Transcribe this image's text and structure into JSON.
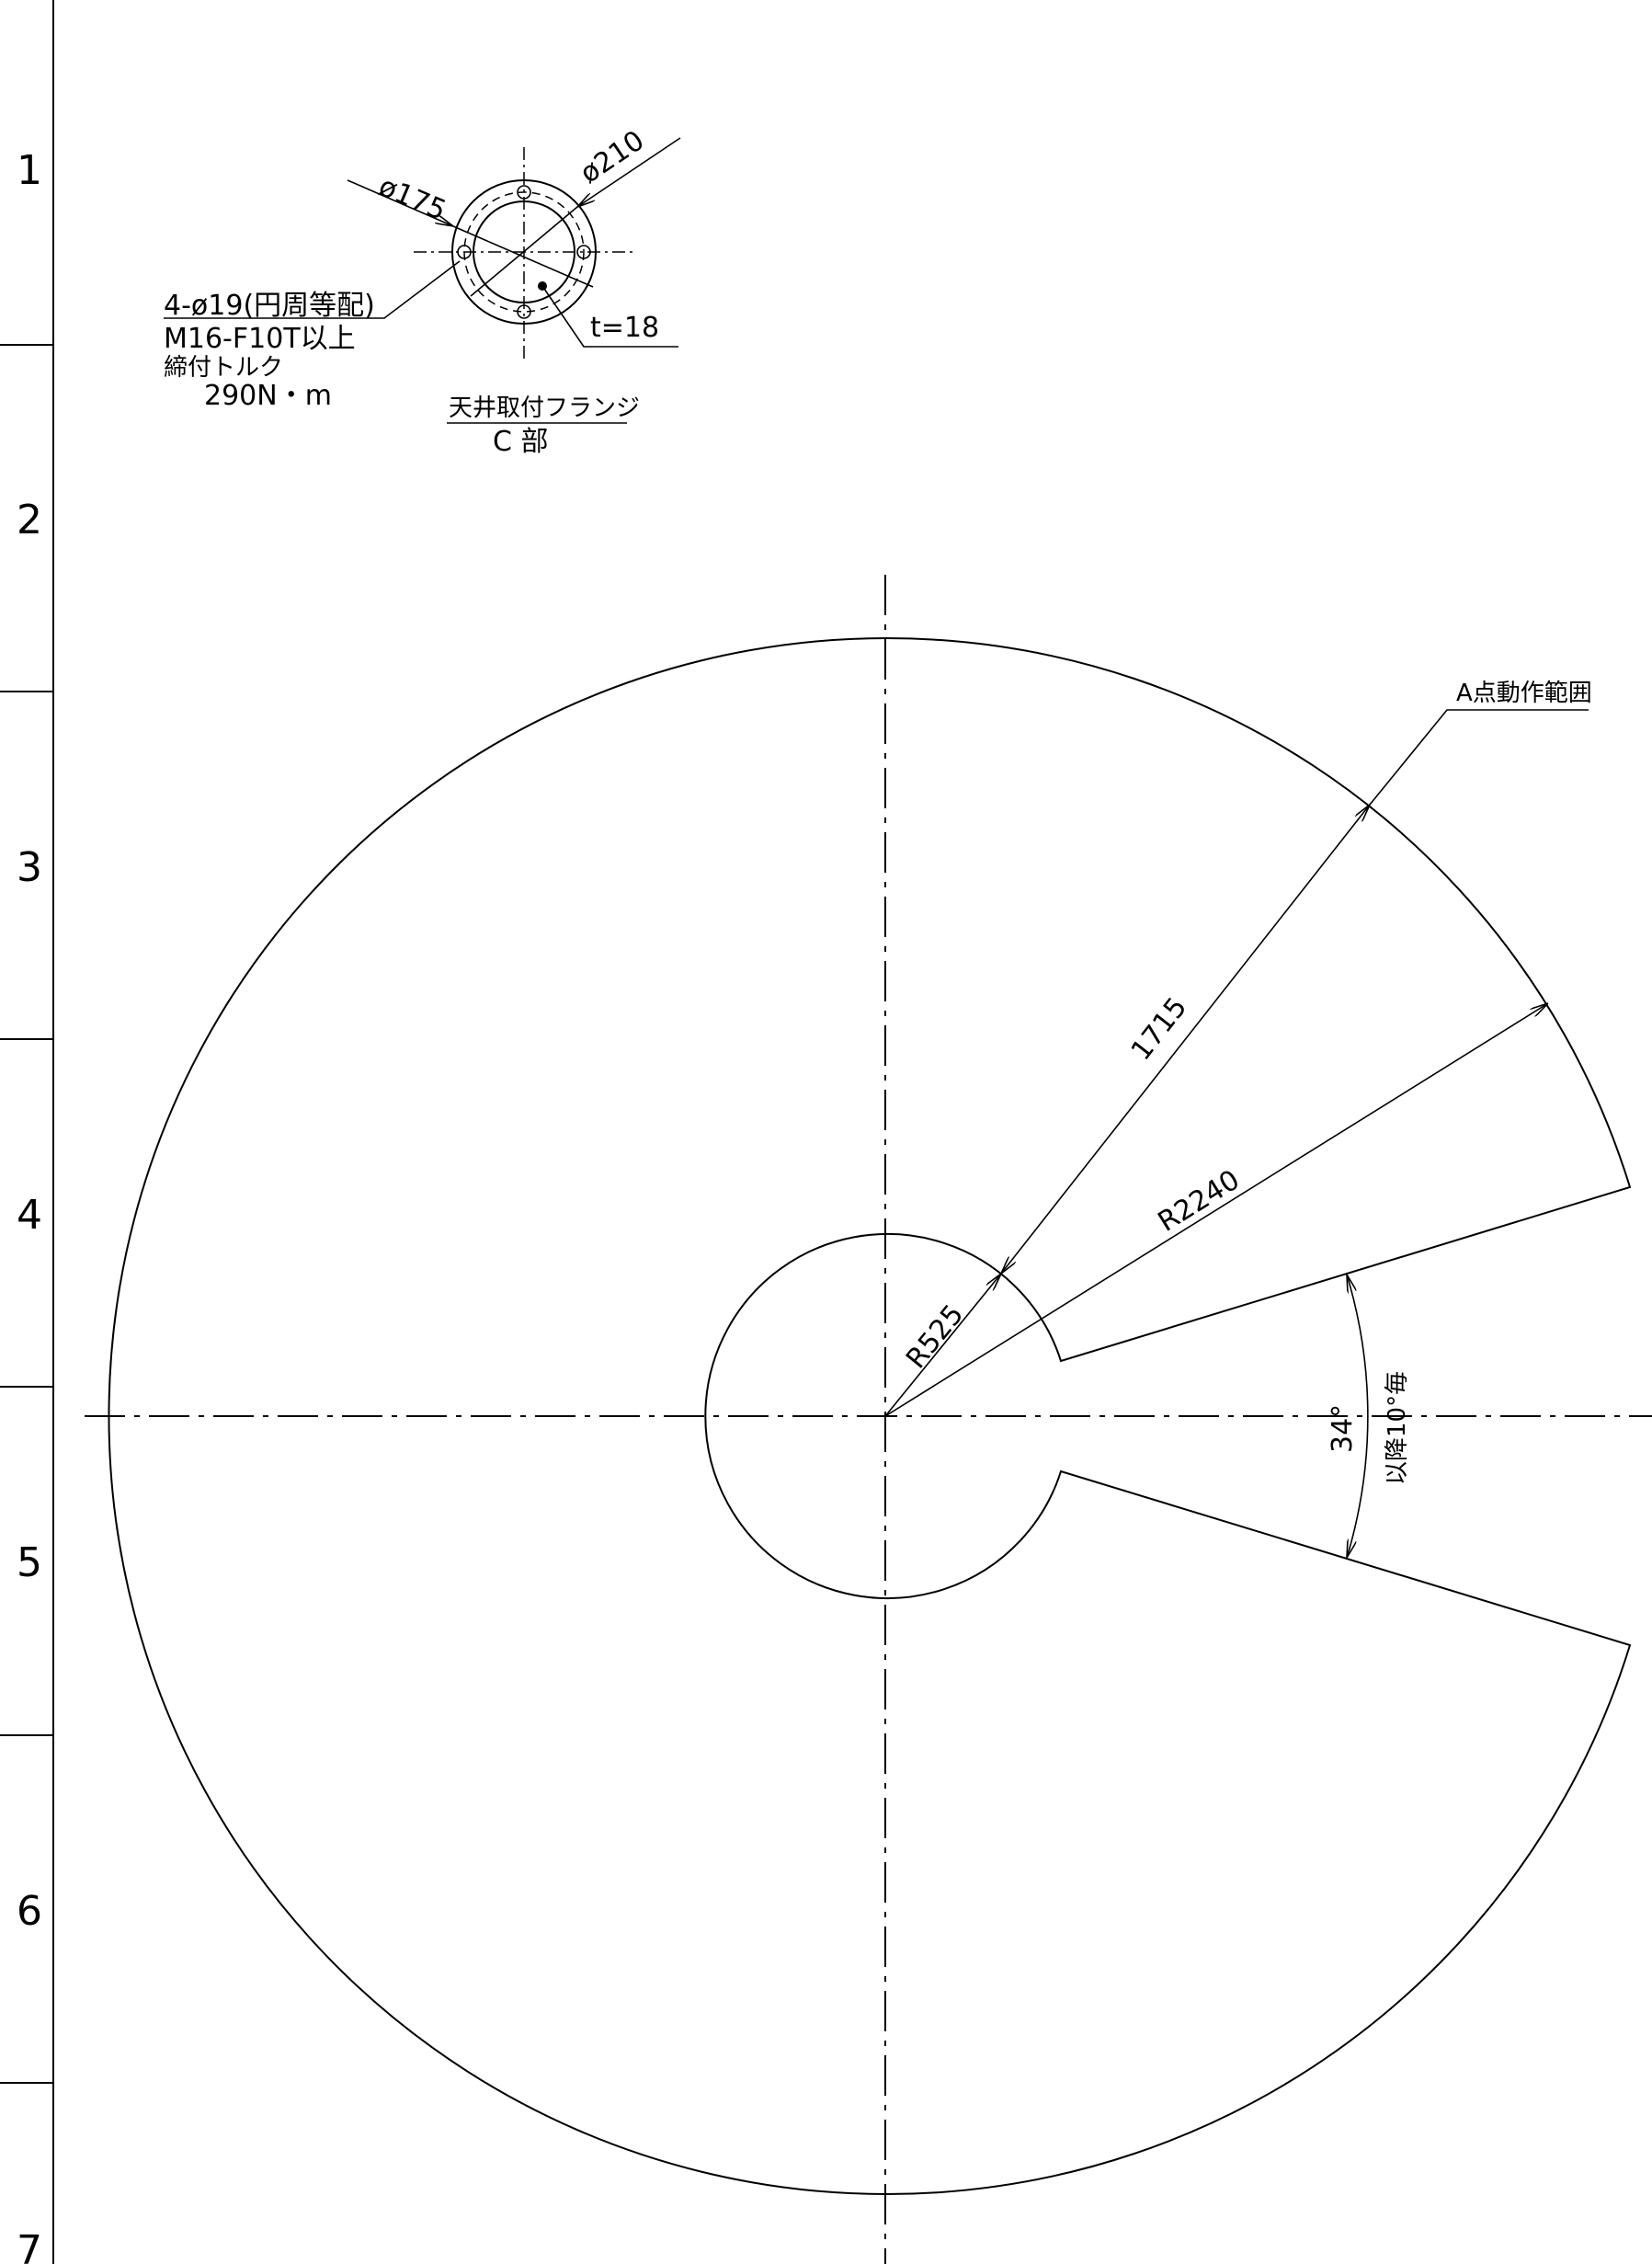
{
  "zones": [
    "1",
    "2",
    "3",
    "4",
    "5",
    "6",
    "7"
  ],
  "flange": {
    "dia_small": "ø175",
    "dia_large": "ø210",
    "bolts": "4-ø19(円周等配)",
    "bolt_spec": "M16-F10T以上",
    "torque_label": "締付トルク",
    "torque_value": "290N・m",
    "thickness": "t=18",
    "title": "天井取付フランジ",
    "subtitle": "C 部"
  },
  "range": {
    "label": "A点動作範囲",
    "span": "1715",
    "outer_radius": "R2240",
    "inner_radius": "R525",
    "gap_angle": "34°",
    "angle_note": "以降10°毎"
  }
}
